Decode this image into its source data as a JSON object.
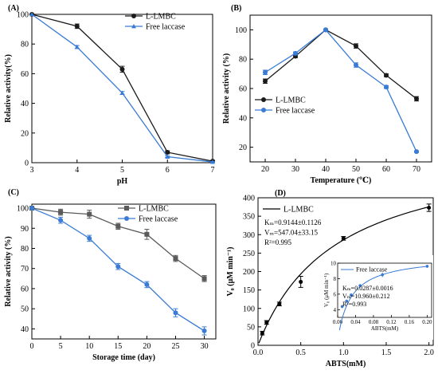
{
  "chart_data": [
    {
      "type": "line",
      "panel_label": "(A)",
      "xlabel": "pH",
      "ylabel": "Relative activity(%)",
      "xlim": [
        3,
        7
      ],
      "ylim": [
        0,
        100
      ],
      "xticks": [
        3,
        4,
        5,
        6,
        7
      ],
      "yticks": [
        0,
        20,
        40,
        60,
        80,
        100
      ],
      "legend_position": "top-right",
      "series": [
        {
          "name": "L-LMBC",
          "color": "#1a1a1a",
          "marker": "circle",
          "x": [
            3,
            4,
            5,
            6,
            7
          ],
          "y": [
            100,
            92,
            63,
            7,
            1
          ],
          "err": [
            0,
            1.5,
            2,
            1,
            0.5
          ]
        },
        {
          "name": "Free laccase",
          "color": "#3a7bd5",
          "marker": "triangle",
          "x": [
            3,
            4,
            5,
            6,
            7
          ],
          "y": [
            100,
            78,
            47,
            4,
            0.5
          ],
          "err": [
            0,
            1,
            1,
            0.5,
            0.3
          ]
        }
      ]
    },
    {
      "type": "line",
      "panel_label": "(B)",
      "xlabel": "Temperature (℃)",
      "ylabel": "Relative activity (%)",
      "xlim": [
        15,
        75
      ],
      "ylim": [
        10,
        110
      ],
      "xticks": [
        20,
        30,
        40,
        50,
        60,
        70
      ],
      "yticks": [
        20,
        40,
        60,
        80,
        100
      ],
      "legend_position": "center-left",
      "series": [
        {
          "name": "L-LMBC",
          "color": "#1a1a1a",
          "marker": "circle",
          "x": [
            20,
            30,
            40,
            50,
            60,
            70
          ],
          "y": [
            65,
            82,
            100,
            89,
            69,
            53
          ],
          "err": [
            1.5,
            1,
            0,
            1.5,
            1,
            1.5
          ]
        },
        {
          "name": "Free laccase",
          "color": "#3a7bd5",
          "marker": "circle",
          "x": [
            20,
            30,
            40,
            50,
            60,
            70
          ],
          "y": [
            71,
            84,
            100,
            76,
            61,
            17
          ],
          "err": [
            1.5,
            1,
            0,
            1.5,
            1,
            0.5
          ]
        }
      ]
    },
    {
      "type": "line",
      "panel_label": "(C)",
      "xlabel": "Storage time (day)",
      "ylabel": "Relative activity (%)",
      "xlim": [
        0,
        32
      ],
      "ylim": [
        35,
        102
      ],
      "xticks": [
        0,
        5,
        10,
        15,
        20,
        25,
        30
      ],
      "yticks": [
        40,
        50,
        60,
        70,
        80,
        90,
        100
      ],
      "legend_position": "top-right",
      "series": [
        {
          "name": "L-LMBC",
          "color": "#5a5a5a",
          "marker": "square",
          "x": [
            0,
            5,
            10,
            15,
            20,
            25,
            30
          ],
          "y": [
            100,
            98,
            97,
            91,
            87,
            75,
            65
          ],
          "err": [
            0,
            1.5,
            2,
            1.5,
            2.5,
            1.5,
            1.5
          ]
        },
        {
          "name": "Free laccase",
          "color": "#3a7bd5",
          "marker": "circle",
          "x": [
            0,
            5,
            10,
            15,
            20,
            25,
            30
          ],
          "y": [
            100,
            94,
            85,
            71,
            62,
            48,
            39
          ],
          "err": [
            0,
            1.5,
            1.5,
            1.5,
            1.5,
            2,
            2
          ]
        }
      ]
    },
    {
      "type": "scatter",
      "panel_label": "(D)",
      "xlabel": "ABTS(mM)",
      "ylabel": "V₀ (μM min⁻¹)",
      "xlim": [
        0,
        2.05
      ],
      "ylim": [
        0,
        400
      ],
      "xticks": [
        0.0,
        0.5,
        1.0,
        1.5,
        2.0
      ],
      "xticklabels": [
        "0.0",
        "0.5",
        "1.0",
        "1.5",
        "2.0"
      ],
      "yticks": [
        0,
        50,
        100,
        150,
        200,
        250,
        300,
        350,
        400
      ],
      "legend_position": "top-left",
      "series": [
        {
          "name": "L-LMBC",
          "color": "#000000",
          "marker": "circle",
          "x": [
            0.05,
            0.1,
            0.25,
            0.5,
            1.0,
            2.0
          ],
          "y": [
            33,
            62,
            112,
            172,
            290,
            373
          ],
          "err": [
            5,
            5,
            5,
            15,
            5,
            10
          ],
          "fit": {
            "model": "michaelis-menten",
            "vm": 547.04,
            "km": 0.9144
          }
        }
      ],
      "annotations": [
        "Kₘ=0.9144±0.1126",
        "Vₘ=547.04±33.15",
        "R²=0.995"
      ],
      "inset": {
        "xlabel": "ABTS(mM)",
        "ylabel": "V₀ (μM min⁻¹)",
        "xlim": [
          0,
          0.21
        ],
        "ylim": [
          3,
          10
        ],
        "xticks": [
          0.0,
          0.04,
          0.08,
          0.12,
          0.16,
          0.2
        ],
        "xticklabels": [
          "0.00",
          "0.04",
          "0.08",
          "0.12",
          "0.16",
          "0.20"
        ],
        "yticks": [
          4,
          6,
          8,
          10
        ],
        "series": [
          {
            "name": "Free laccase",
            "color": "#3a7bd5",
            "marker": "circle",
            "x": [
              0.01,
              0.02,
              0.03,
              0.05,
              0.1,
              0.2
            ],
            "y": [
              4.4,
              5.1,
              5.9,
              7.1,
              8.5,
              9.6
            ],
            "err": [
              0.2,
              0.2,
              0.2,
              0.2,
              0.3,
              0.2
            ],
            "fit": {
              "model": "michaelis-menten",
              "vm": 10.96,
              "km": 0.0287
            }
          }
        ],
        "annotations": [
          "Kₘ=0.0287±0.0016",
          "Vₘ=10.960±0.212",
          "R²=0.993"
        ]
      }
    }
  ]
}
